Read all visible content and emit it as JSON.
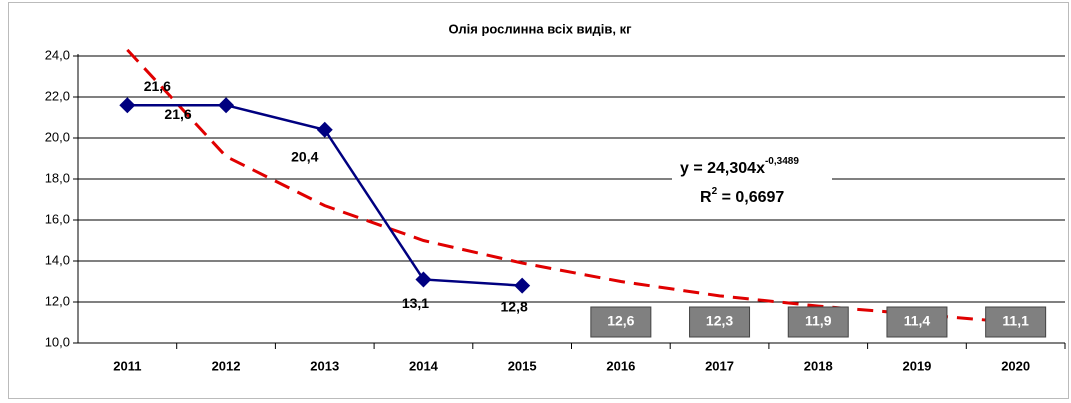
{
  "chart_data": {
    "type": "line",
    "title": "Олія рослинна всіх видів, кг",
    "categories": [
      "2011",
      "2012",
      "2013",
      "2014",
      "2015",
      "2016",
      "2017",
      "2018",
      "2019",
      "2020"
    ],
    "series": [
      {
        "color": "#000080",
        "values": [
          21.6,
          21.6,
          20.4,
          13.1,
          12.8,
          null,
          null,
          null,
          null,
          null
        ],
        "value_labels": [
          "21,6",
          "21,6",
          "20,4",
          "13,1",
          "12,8",
          null,
          null,
          null,
          null,
          null
        ]
      },
      {
        "color": "#e00000",
        "style": "dashed",
        "values": [
          24.3,
          19.1,
          16.7,
          15.0,
          13.9,
          13.0,
          12.3,
          11.8,
          11.4,
          11.0
        ]
      },
      {
        "color": "#808080",
        "style": "label-box",
        "values": [
          null,
          null,
          null,
          null,
          null,
          12.6,
          12.3,
          11.9,
          11.4,
          11.1
        ],
        "value_labels": [
          null,
          null,
          null,
          null,
          null,
          "12,6",
          "12,3",
          "11,9",
          "11,4",
          "11,1"
        ]
      }
    ],
    "annotation": {
      "equation": "y = 24,304x",
      "exponent": "-0,3489",
      "r2_label": "R",
      "r2_sup": "2",
      "r2_value": " = 0,6697"
    },
    "ylim": [
      10,
      24
    ],
    "yticks": [
      {
        "value": 10,
        "label": "10,0"
      },
      {
        "value": 12,
        "label": "12,0"
      },
      {
        "value": 14,
        "label": "14,0"
      },
      {
        "value": 16,
        "label": "16,0"
      },
      {
        "value": 18,
        "label": "18,0"
      },
      {
        "value": 20,
        "label": "20,0"
      },
      {
        "value": 22,
        "label": "22,0"
      },
      {
        "value": 24,
        "label": "24,0"
      }
    ],
    "grid": true
  }
}
